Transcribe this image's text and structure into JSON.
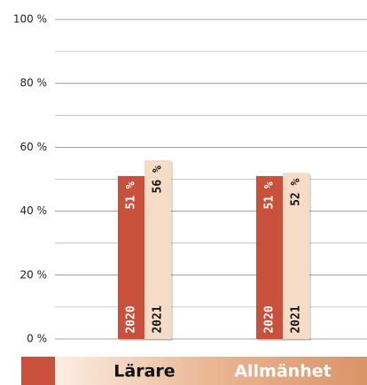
{
  "chart_data": {
    "type": "bar",
    "categories": [
      "Lärare",
      "Allmänhet"
    ],
    "series": [
      {
        "name": "2020",
        "color": "#c9503a",
        "values": [
          51,
          51
        ],
        "value_labels": [
          "51 %",
          "51 %"
        ]
      },
      {
        "name": "2021",
        "color": "#f6dcc7",
        "values": [
          56,
          52
        ],
        "value_labels": [
          "56 %",
          "52 %"
        ]
      }
    ],
    "ylim": [
      0,
      100
    ],
    "yticks": [
      {
        "value": 0,
        "label": "0 %"
      },
      {
        "value": 20,
        "label": "20 %"
      },
      {
        "value": 40,
        "label": "40 %"
      },
      {
        "value": 60,
        "label": "60 %"
      },
      {
        "value": 80,
        "label": "80 %"
      },
      {
        "value": 100,
        "label": "100 %"
      }
    ],
    "minor_yticks": [
      10,
      30,
      50,
      70,
      90
    ],
    "grid": true
  }
}
